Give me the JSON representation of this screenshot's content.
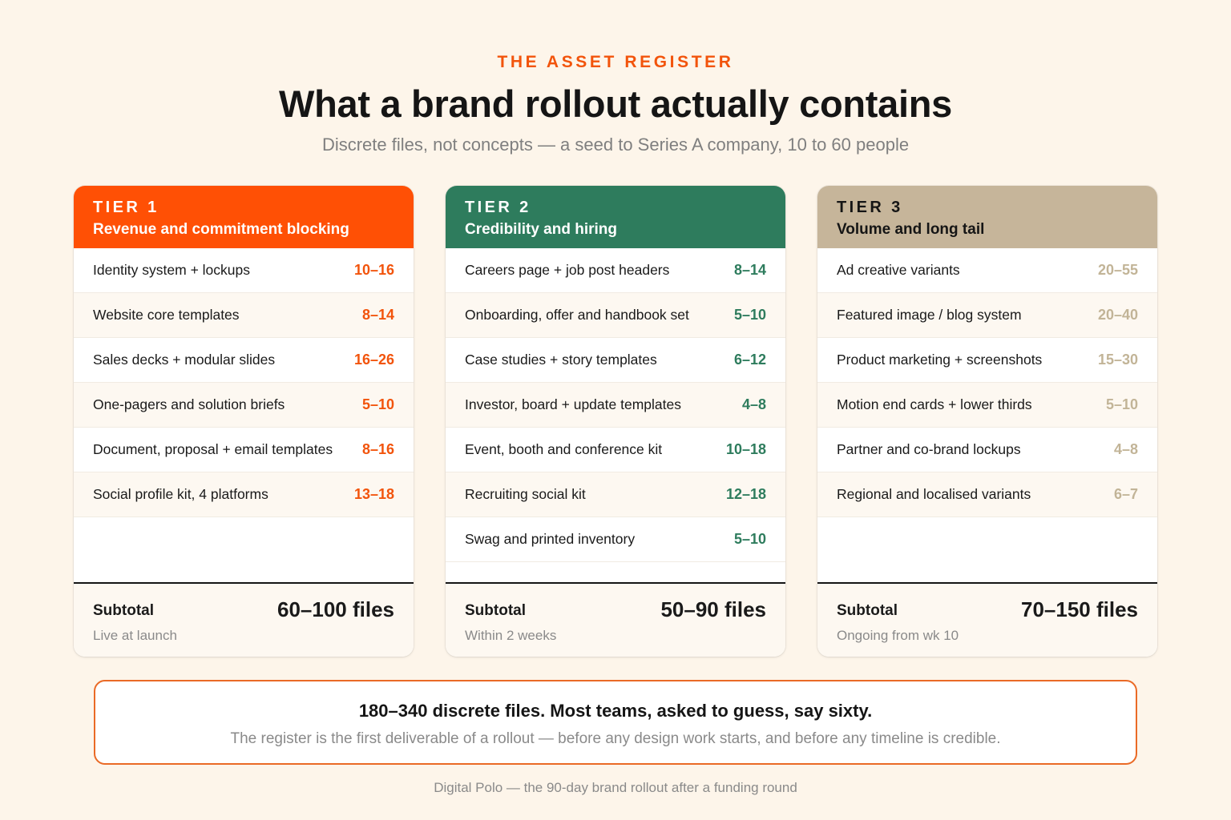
{
  "header": {
    "eyebrow": "THE ASSET REGISTER",
    "title": "What a brand rollout actually contains",
    "subtitle": "Discrete files, not concepts — a seed to Series A company, 10 to 60 people"
  },
  "colors": {
    "tier1": "#ff5005",
    "tier2": "#2e7c5d",
    "tier3": "#c6b59a",
    "background": "#fdf5ea"
  },
  "tiers": [
    {
      "label": "TIER 1",
      "name": "Revenue and commitment blocking",
      "items": [
        {
          "name": "Identity system + lockups",
          "value": "10–16"
        },
        {
          "name": "Website core templates",
          "value": "8–14"
        },
        {
          "name": "Sales decks + modular slides",
          "value": "16–26"
        },
        {
          "name": "One-pagers and solution briefs",
          "value": "5–10"
        },
        {
          "name": "Document, proposal + email templates",
          "value": "8–16"
        },
        {
          "name": "Social profile kit, 4 platforms",
          "value": "13–18"
        }
      ],
      "subtotal_label": "Subtotal",
      "subtotal_value": "60–100 files",
      "subtotal_note": "Live at launch"
    },
    {
      "label": "TIER 2",
      "name": "Credibility and hiring",
      "items": [
        {
          "name": "Careers page + job post headers",
          "value": "8–14"
        },
        {
          "name": "Onboarding, offer and handbook set",
          "value": "5–10"
        },
        {
          "name": "Case studies + story templates",
          "value": "6–12"
        },
        {
          "name": "Investor, board + update templates",
          "value": "4–8"
        },
        {
          "name": "Event, booth and conference kit",
          "value": "10–18"
        },
        {
          "name": "Recruiting social kit",
          "value": "12–18"
        },
        {
          "name": "Swag and printed inventory",
          "value": "5–10"
        }
      ],
      "subtotal_label": "Subtotal",
      "subtotal_value": "50–90 files",
      "subtotal_note": "Within 2 weeks"
    },
    {
      "label": "TIER 3",
      "name": "Volume and long tail",
      "items": [
        {
          "name": "Ad creative variants",
          "value": "20–55"
        },
        {
          "name": "Featured image / blog system",
          "value": "20–40"
        },
        {
          "name": "Product marketing + screenshots",
          "value": "15–30"
        },
        {
          "name": "Motion end cards + lower thirds",
          "value": "5–10"
        },
        {
          "name": "Partner and co-brand lockups",
          "value": "4–8"
        },
        {
          "name": "Regional and localised variants",
          "value": "6–7"
        }
      ],
      "subtotal_label": "Subtotal",
      "subtotal_value": "70–150 files",
      "subtotal_note": "Ongoing from wk 10"
    }
  ],
  "callout": {
    "headline": "180–340 discrete files. Most teams, asked to guess, say sixty.",
    "body": "The register is the first deliverable of a rollout — before any design work starts, and before any timeline is credible."
  },
  "footer": "Digital Polo — the 90-day brand rollout after a funding round"
}
